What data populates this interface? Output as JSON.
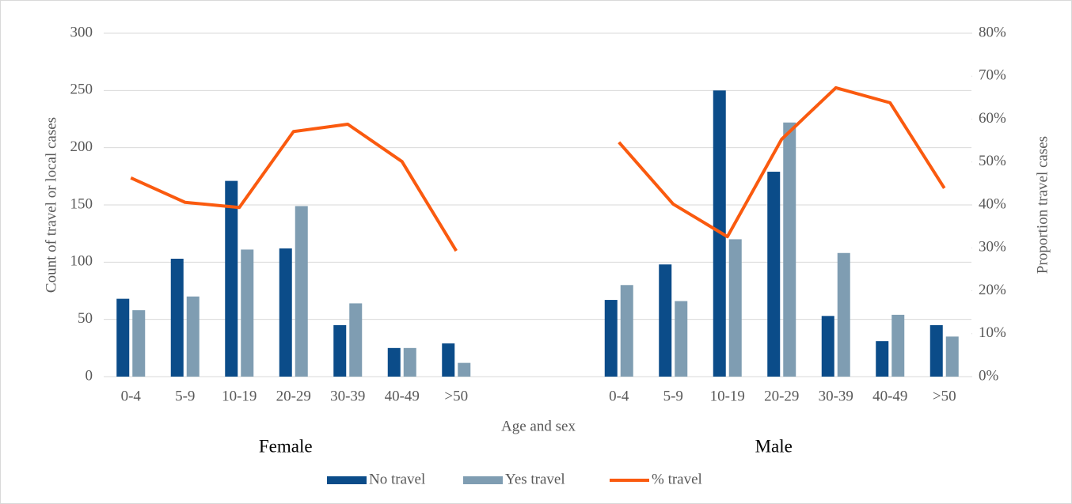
{
  "chart_data": {
    "type": "bar-line",
    "x_label": "Age and sex",
    "y_label": "Count of travel or local cases",
    "y2_label": "Proportion travel cases",
    "categories": [
      "0-4",
      "5-9",
      "10-19",
      "20-29",
      "30-39",
      "40-49",
      ">50",
      null,
      null,
      "0-4",
      "5-9",
      "10-19",
      "20-29",
      "30-39",
      "40-49",
      ">50"
    ],
    "group_labels": [
      "Female",
      "Male"
    ],
    "series": [
      {
        "name": "No travel",
        "type": "bar",
        "color": "#0b4c89",
        "values": [
          68,
          103,
          171,
          112,
          45,
          25,
          29,
          null,
          null,
          67,
          98,
          250,
          179,
          53,
          31,
          45
        ]
      },
      {
        "name": "Yes travel",
        "type": "bar",
        "color": "#7f9db2",
        "values": [
          58,
          70,
          111,
          149,
          64,
          25,
          12,
          null,
          null,
          80,
          66,
          120,
          222,
          108,
          54,
          35
        ]
      },
      {
        "name": "% travel",
        "type": "line",
        "axis": "y2",
        "color": "#fa5a0f",
        "values": [
          46.3,
          40.6,
          39.4,
          57.1,
          58.8,
          50.1,
          29.3,
          null,
          null,
          54.6,
          40.2,
          32.6,
          55.3,
          67.3,
          63.8,
          43.9
        ]
      }
    ],
    "ylim": [
      0,
      300
    ],
    "yticks": [
      0,
      50,
      100,
      150,
      200,
      250,
      300
    ],
    "y2lim": [
      0,
      80
    ],
    "y2ticks": [
      {
        "value": 0,
        "label": "0%"
      },
      {
        "value": 10,
        "label": "10%"
      },
      {
        "value": 20,
        "label": "20%"
      },
      {
        "value": 30,
        "label": "30%"
      },
      {
        "value": 40,
        "label": "40%"
      },
      {
        "value": 50,
        "label": "50%"
      },
      {
        "value": 60,
        "label": "60%"
      },
      {
        "value": 70,
        "label": "70%"
      },
      {
        "value": 80,
        "label": "80%"
      }
    ],
    "grid": true,
    "legend": "bottom"
  }
}
